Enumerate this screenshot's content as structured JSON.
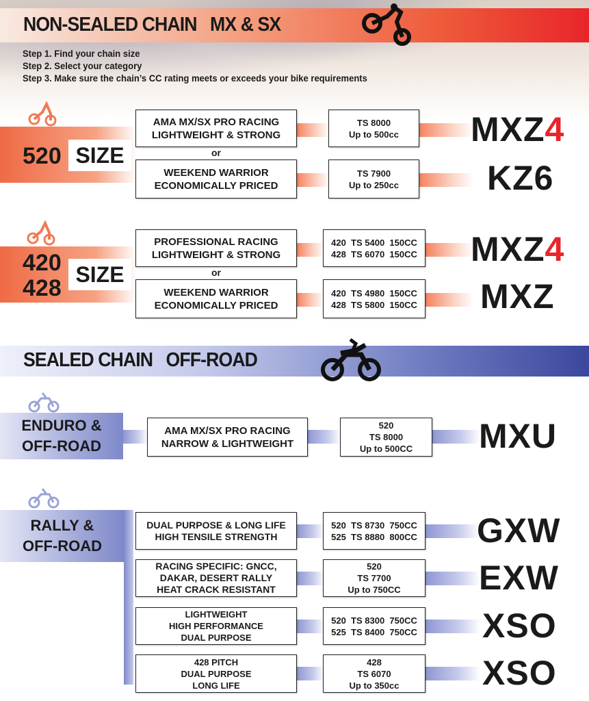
{
  "non_sealed": {
    "title": "NON-SEALED CHAIN   MX & SX",
    "accent": "#ee5a3a",
    "icon": "motocross-bike-icon",
    "steps": [
      "Step 1. Find your chain size",
      "Step 2. Select your category",
      "Step 3. Make sure the chain’s CC rating meets or exceeds your bike requirements"
    ],
    "groups": [
      {
        "size": "520",
        "size_label": "SIZE",
        "or": "or",
        "rows": [
          {
            "category": [
              "AMA MX/SX PRO RACING",
              "LIGHTWEIGHT & STRONG"
            ],
            "rating": [
              "TS 8000",
              "Up to 500cc"
            ],
            "product": "MXZ",
            "product_suffix": "4"
          },
          {
            "category": [
              "WEEKEND WARRIOR",
              "ECONOMICALLY PRICED"
            ],
            "rating": [
              "TS 7900",
              "Up to 250cc"
            ],
            "product": "KZ6"
          }
        ]
      },
      {
        "size": [
          "420",
          "428"
        ],
        "size_label": "SIZE",
        "or": "or",
        "rows": [
          {
            "category": [
              "PROFESSIONAL RACING",
              "LIGHTWEIGHT & STRONG"
            ],
            "rating": [
              "420  TS 5400  150CC",
              "428  TS 6070  150CC"
            ],
            "product": "MXZ",
            "product_suffix": "4"
          },
          {
            "category": [
              "WEEKEND WARRIOR",
              "ECONOMICALLY PRICED"
            ],
            "rating": [
              "420  TS 4980  150CC",
              "428  TS 5800  150CC"
            ],
            "product": "MXZ"
          }
        ]
      }
    ]
  },
  "sealed": {
    "title": "SEALED CHAIN   OFF-ROAD",
    "accent": "#3b479d",
    "icon": "dirt-bike-icon",
    "groups": [
      {
        "label": [
          "ENDURO &",
          "OFF-ROAD"
        ],
        "rows": [
          {
            "category": [
              "AMA MX/SX PRO RACING",
              "NARROW & LIGHTWEIGHT"
            ],
            "rating": [
              "520",
              "TS 8000",
              "Up to 500CC"
            ],
            "product": "MXU"
          }
        ]
      },
      {
        "label": [
          "RALLY &",
          "OFF-ROAD"
        ],
        "rows": [
          {
            "category": [
              "DUAL PURPOSE & LONG LIFE",
              "HIGH TENSILE STRENGTH"
            ],
            "rating": [
              "520  TS 8730  750CC",
              "525  TS 8880  800CC"
            ],
            "product": "GXW"
          },
          {
            "category": [
              "RACING SPECIFIC: GNCC,",
              "DAKAR, DESERT RALLY",
              "HEAT CRACK RESISTANT"
            ],
            "rating": [
              "520",
              "TS 7700",
              "Up to 750CC"
            ],
            "product": "EXW"
          },
          {
            "category": [
              "LIGHTWEIGHT",
              "HIGH PERFORMANCE",
              "DUAL PURPOSE"
            ],
            "rating": [
              "520  TS 8300  750CC",
              "525  TS 8400  750CC"
            ],
            "product": "XSO"
          },
          {
            "category": [
              "428 PITCH",
              "DUAL PURPOSE",
              "LONG LIFE"
            ],
            "rating": [
              "428",
              "TS 6070",
              "Up to 350cc"
            ],
            "product": "XSO"
          }
        ]
      }
    ]
  }
}
